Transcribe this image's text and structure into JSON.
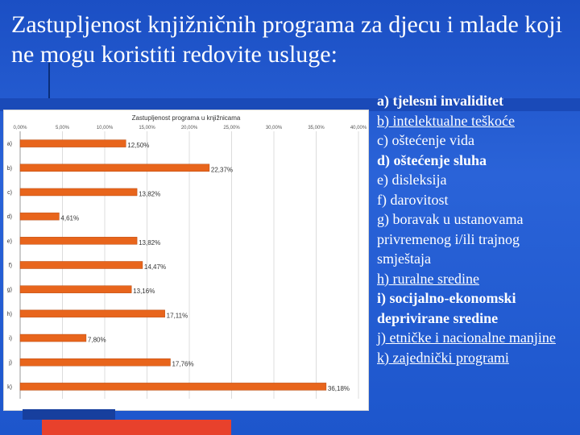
{
  "slide": {
    "title": "Zastupljenost knjižničnih programa za djecu i mlade koji ne mogu koristiti redovite usluge:"
  },
  "colors": {
    "background": "#1d56cc",
    "bar_fill": "#e8651c",
    "accent_bottom": "#e8412c"
  },
  "chart_data": {
    "type": "bar",
    "orientation": "horizontal",
    "title": "Zastupljenost programa u knjižnicama",
    "categories": [
      "a)",
      "b)",
      "c)",
      "d)",
      "e)",
      "f)",
      "g)",
      "h)",
      "i)",
      "j)",
      "k)"
    ],
    "values": [
      12.5,
      22.37,
      13.82,
      4.61,
      13.82,
      14.47,
      13.16,
      17.11,
      7.8,
      17.76,
      36.18
    ],
    "value_labels": [
      "12,50%",
      "22,37%",
      "13,82%",
      "4,61%",
      "13,82%",
      "14,47%",
      "13,16%",
      "17,11%",
      "7,80%",
      "17,76%",
      "36,18%"
    ],
    "x_ticks": [
      "0,00%",
      "5,00%",
      "10,00%",
      "15,00%",
      "20,00%",
      "25,00%",
      "30,00%",
      "35,00%",
      "40,00%"
    ],
    "xlim": [
      0,
      40
    ],
    "grid": true,
    "bar_color": "#e8651c"
  },
  "legend": {
    "items": [
      {
        "text": "a) tjelesni invaliditet",
        "style": "bold"
      },
      {
        "text": "b) intelektualne teškoće",
        "style": "under"
      },
      {
        "text": "c) oštećenje vida",
        "style": "normal"
      },
      {
        "text": "d) oštećenje sluha",
        "style": "bold"
      },
      {
        "text": "e) disleksija",
        "style": "normal"
      },
      {
        "text": "f) darovitost",
        "style": "normal"
      },
      {
        "text": "g) boravak u ustanovama privremenog i/ili trajnog smještaja",
        "style": "normal"
      },
      {
        "text": "h) ruralne sredine",
        "style": "under"
      },
      {
        "text": "i) socijalno-ekonomski deprivirane sredine",
        "style": "bold"
      },
      {
        "text": "j) etničke i nacionalne manjine",
        "style": "under"
      },
      {
        "text": "k) zajednički programi",
        "style": "under"
      }
    ]
  }
}
